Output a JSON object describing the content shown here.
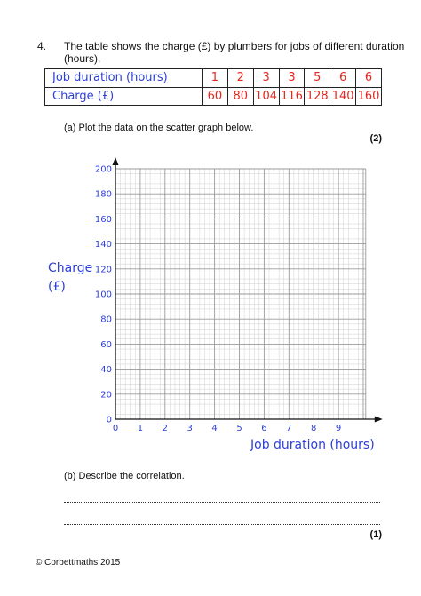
{
  "question": {
    "number": "4.",
    "text": "The table shows the charge (£) by plumbers for jobs of different duration (hours)."
  },
  "table": {
    "row1_label": "Job duration (hours)",
    "row1_values": [
      "1",
      "2",
      "3",
      "3",
      "5",
      "6",
      "6"
    ],
    "row2_label": "Charge (£)",
    "row2_values": [
      "60",
      "80",
      "104",
      "116",
      "128",
      "140",
      "160"
    ]
  },
  "part_a": {
    "text": "(a)   Plot the data on the scatter graph below.",
    "marks": "(2)"
  },
  "part_b": {
    "text": "(b)   Describe the correlation.",
    "marks": "(1)"
  },
  "chart_data": {
    "type": "scatter",
    "title": "",
    "xlabel": "Job duration (hours)",
    "ylabel_line1": "Charge",
    "ylabel_line2": "(£)",
    "xlim": [
      0,
      10
    ],
    "ylim": [
      0,
      200
    ],
    "x_ticks": [
      "0",
      "1",
      "2",
      "3",
      "4",
      "5",
      "6",
      "7",
      "8",
      "9"
    ],
    "y_ticks": [
      "0",
      "20",
      "40",
      "60",
      "80",
      "100",
      "120",
      "140",
      "160",
      "180",
      "200"
    ],
    "grid": true,
    "series": [],
    "colors": {
      "grid_major": "#9a9a9a",
      "grid_minor": "#cfcfcf",
      "axis": "#111111",
      "label": "#2c3fd8",
      "tick": "#2c3fd8"
    }
  },
  "footer": "© Corbettmaths 2015"
}
